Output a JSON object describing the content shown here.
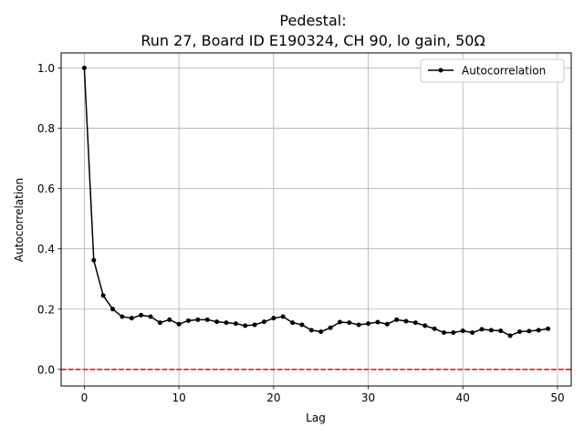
{
  "chart_data": {
    "type": "line",
    "title": [
      "Pedestal:",
      "Run 27, Board ID E190324, CH 90, lo gain, 50Ω"
    ],
    "xlabel": "Lag",
    "ylabel": "Autocorrelation",
    "xlim": [
      -2.45,
      51.45
    ],
    "ylim": [
      -0.055,
      1.05
    ],
    "xticks": [
      0,
      10,
      20,
      30,
      40,
      50
    ],
    "xtick_labels": [
      "0",
      "10",
      "20",
      "30",
      "40",
      "50"
    ],
    "yticks": [
      0.0,
      0.2,
      0.4,
      0.6,
      0.8,
      1.0
    ],
    "ytick_labels": [
      "0.0",
      "0.2",
      "0.4",
      "0.6",
      "0.8",
      "1.0"
    ],
    "grid": true,
    "legend": {
      "position": "top-right",
      "entries": [
        "Autocorrelation"
      ]
    },
    "reference_line": {
      "y": 0.0,
      "color": "#ff0000",
      "style": "dashed"
    },
    "series": [
      {
        "name": "Autocorrelation",
        "color": "#000000",
        "marker": "dot",
        "x": [
          0,
          1,
          2,
          3,
          4,
          5,
          6,
          7,
          8,
          9,
          10,
          11,
          12,
          13,
          14,
          15,
          16,
          17,
          18,
          19,
          20,
          21,
          22,
          23,
          24,
          25,
          26,
          27,
          28,
          29,
          30,
          31,
          32,
          33,
          34,
          35,
          36,
          37,
          38,
          39,
          40,
          41,
          42,
          43,
          44,
          45,
          46,
          47,
          48,
          49
        ],
        "values": [
          1.0,
          0.362,
          0.245,
          0.2,
          0.175,
          0.17,
          0.18,
          0.175,
          0.155,
          0.165,
          0.15,
          0.162,
          0.165,
          0.165,
          0.158,
          0.155,
          0.152,
          0.145,
          0.148,
          0.158,
          0.17,
          0.175,
          0.155,
          0.148,
          0.13,
          0.125,
          0.138,
          0.157,
          0.155,
          0.148,
          0.152,
          0.157,
          0.15,
          0.165,
          0.16,
          0.155,
          0.145,
          0.135,
          0.122,
          0.122,
          0.128,
          0.122,
          0.133,
          0.13,
          0.128,
          0.112,
          0.125,
          0.127,
          0.13,
          0.135
        ]
      }
    ]
  }
}
